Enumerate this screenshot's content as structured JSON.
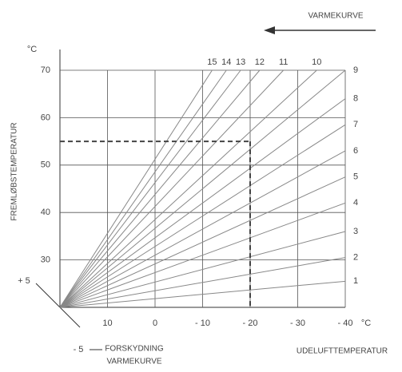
{
  "chart_data": {
    "type": "line",
    "title": "VARMEKURVE",
    "y_label": "FREMLØBSTEMPERATUR",
    "x_label": "UDELUFTTEMPERATUR",
    "y_unit": "°C",
    "x_unit": "°C",
    "offset_label": [
      "FORSKYDNING",
      "VARMEKURVE"
    ],
    "offset_ticks": [
      "+ 5",
      "- 5"
    ],
    "xlim": [
      20,
      -40
    ],
    "ylim": [
      20,
      70
    ],
    "xticks": [
      10,
      0,
      {
        "value": -10,
        "label": "- 10"
      },
      {
        "value": -20,
        "label": "- 20"
      },
      {
        "value": -30,
        "label": "- 30"
      },
      {
        "value": -40,
        "label": "- 40"
      }
    ],
    "yticks": [
      30,
      40,
      50,
      60,
      70
    ],
    "grid": true,
    "grid_color": "#555555",
    "reference": {
      "x": -20,
      "y": 55,
      "color": "#444444"
    },
    "series": [
      {
        "name": "1",
        "color": "#888888",
        "x": [
          20,
          -40
        ],
        "values": [
          20,
          25.5
        ]
      },
      {
        "name": "2",
        "color": "#888888",
        "x": [
          20,
          -40
        ],
        "values": [
          20,
          30.5
        ]
      },
      {
        "name": "3",
        "color": "#888888",
        "x": [
          20,
          -40
        ],
        "values": [
          20,
          36
        ]
      },
      {
        "name": "4",
        "color": "#888888",
        "x": [
          20,
          -40
        ],
        "values": [
          20,
          42
        ]
      },
      {
        "name": "5",
        "color": "#888888",
        "x": [
          20,
          -40
        ],
        "values": [
          20,
          47.5
        ]
      },
      {
        "name": "6",
        "color": "#888888",
        "x": [
          20,
          -40
        ],
        "values": [
          20,
          53
        ]
      },
      {
        "name": "7",
        "color": "#888888",
        "x": [
          20,
          -40
        ],
        "values": [
          20,
          58.5
        ]
      },
      {
        "name": "8",
        "color": "#888888",
        "x": [
          20,
          -40
        ],
        "values": [
          20,
          64
        ]
      },
      {
        "name": "9",
        "color": "#888888",
        "x": [
          20,
          -40
        ],
        "values": [
          20,
          70
        ]
      },
      {
        "name": "10",
        "color": "#888888",
        "x": [
          20,
          -34
        ],
        "values": [
          20,
          70
        ]
      },
      {
        "name": "11",
        "color": "#888888",
        "x": [
          20,
          -27
        ],
        "values": [
          20,
          70
        ]
      },
      {
        "name": "12",
        "color": "#888888",
        "x": [
          20,
          -22
        ],
        "values": [
          20,
          70
        ]
      },
      {
        "name": "13",
        "color": "#888888",
        "x": [
          20,
          -18
        ],
        "values": [
          20,
          70
        ]
      },
      {
        "name": "14",
        "color": "#888888",
        "x": [
          20,
          -15
        ],
        "values": [
          20,
          70
        ]
      },
      {
        "name": "15",
        "color": "#888888",
        "x": [
          20,
          -12
        ],
        "values": [
          20,
          70
        ]
      }
    ]
  }
}
